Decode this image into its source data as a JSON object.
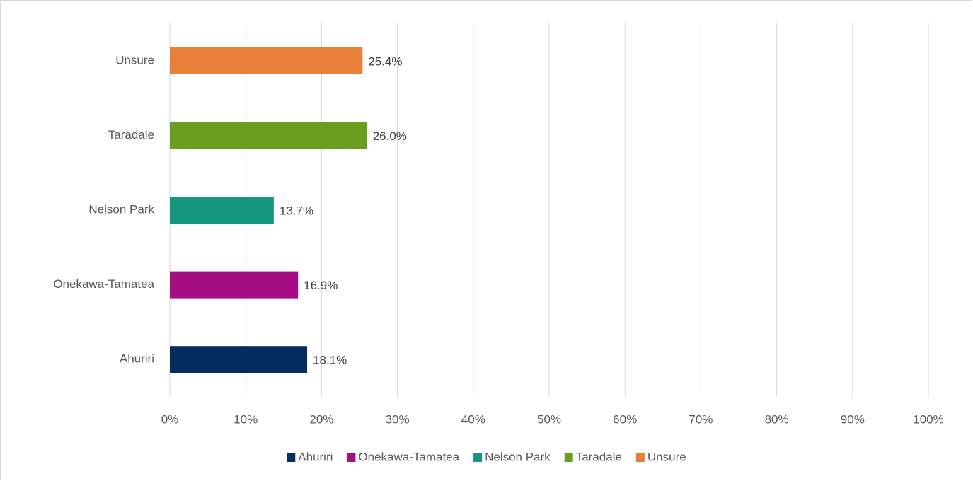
{
  "chart_data": {
    "type": "bar",
    "orientation": "horizontal",
    "categories": [
      "Ahuriri",
      "Onekawa-Tamatea",
      "Nelson Park",
      "Taradale",
      "Unsure"
    ],
    "values": [
      18.1,
      16.9,
      13.7,
      26.0,
      25.4
    ],
    "value_labels": [
      "18.1%",
      "16.9%",
      "13.7%",
      "26.0%",
      "25.4%"
    ],
    "colors": [
      "#032d5e",
      "#a50e82",
      "#14967f",
      "#6a9e1f",
      "#e8803a"
    ],
    "xlim": [
      0,
      100
    ],
    "xticks": [
      {
        "value": 0,
        "label": "0%"
      },
      {
        "value": 10,
        "label": "10%"
      },
      {
        "value": 20,
        "label": "20%"
      },
      {
        "value": 30,
        "label": "30%"
      },
      {
        "value": 40,
        "label": "40%"
      },
      {
        "value": 50,
        "label": "50%"
      },
      {
        "value": 60,
        "label": "60%"
      },
      {
        "value": 70,
        "label": "70%"
      },
      {
        "value": 80,
        "label": "80%"
      },
      {
        "value": 90,
        "label": "90%"
      },
      {
        "value": 100,
        "label": "100%"
      }
    ],
    "grid": true,
    "legend": "bottom"
  }
}
